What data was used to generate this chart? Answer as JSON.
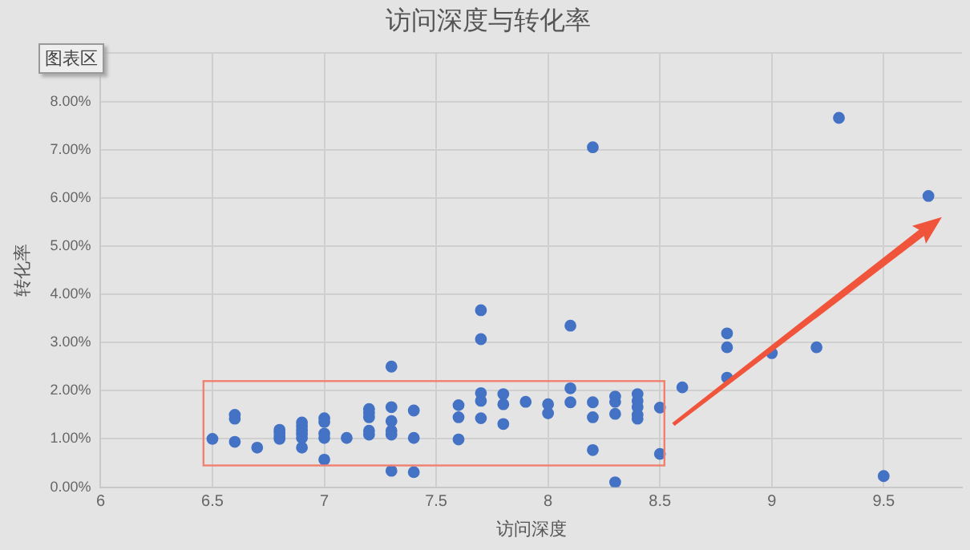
{
  "chart_data": {
    "type": "scatter",
    "title": "访问深度与转化率",
    "xlabel": "访问深度",
    "ylabel": "转化率",
    "annotations": [
      "图表区"
    ],
    "series": [
      {
        "color": "#4472c4",
        "x": [
          6.5,
          6.6,
          6.6,
          6.6,
          6.7,
          6.8,
          6.8,
          6.8,
          6.8,
          6.9,
          6.9,
          6.9,
          6.9,
          6.9,
          6.9,
          7.0,
          7.0,
          7.0,
          7.0,
          7.0,
          7.1,
          7.2,
          7.2,
          7.2,
          7.2,
          7.2,
          7.3,
          7.3,
          7.3,
          7.3,
          7.3,
          7.3,
          7.4,
          7.4,
          7.4,
          7.6,
          7.6,
          7.6,
          7.7,
          7.7,
          7.7,
          7.7,
          7.7,
          7.8,
          7.8,
          7.8,
          7.9,
          8.0,
          8.0,
          8.1,
          8.1,
          8.1,
          8.2,
          8.2,
          8.2,
          8.2,
          8.3,
          8.3,
          8.3,
          8.3,
          8.4,
          8.4,
          8.4,
          8.4,
          8.4,
          8.5,
          8.5,
          8.6,
          8.8,
          8.8,
          8.8,
          9.0,
          9.2,
          9.3,
          9.5,
          9.7
        ],
        "values": [
          1.0,
          1.5,
          1.42,
          0.94,
          0.82,
          1.19,
          1.13,
          1.06,
          1.0,
          1.34,
          1.26,
          1.18,
          1.1,
          1.02,
          0.82,
          1.43,
          1.35,
          1.11,
          1.02,
          0.57,
          1.02,
          1.62,
          1.54,
          1.45,
          1.17,
          1.09,
          2.5,
          1.66,
          1.37,
          1.17,
          1.09,
          0.34,
          1.59,
          1.02,
          0.31,
          1.7,
          1.45,
          0.99,
          3.67,
          3.07,
          1.95,
          1.79,
          1.43,
          1.93,
          1.72,
          1.31,
          1.77,
          1.72,
          1.53,
          3.35,
          2.05,
          1.76,
          7.05,
          1.76,
          1.45,
          0.77,
          1.88,
          1.77,
          1.52,
          0.1,
          1.93,
          1.79,
          1.66,
          1.5,
          1.42,
          1.65,
          0.69,
          2.07,
          3.19,
          2.9,
          2.27,
          2.78,
          2.9,
          7.66,
          0.23,
          6.04
        ]
      }
    ],
    "xlim": [
      6,
      9.85
    ],
    "xticks": [
      6,
      6.5,
      7,
      7.5,
      8,
      8.5,
      9,
      9.5
    ],
    "ylim": [
      0,
      9
    ],
    "yticks": [
      {
        "value": 0,
        "label": "0.00%"
      },
      {
        "value": 1,
        "label": "1.00%"
      },
      {
        "value": 2,
        "label": "2.00%"
      },
      {
        "value": 3,
        "label": "3.00%"
      },
      {
        "value": 4,
        "label": "4.00%"
      },
      {
        "value": 5,
        "label": "5.00%"
      },
      {
        "value": 6,
        "label": "6.00%"
      },
      {
        "value": 7,
        "label": "7.00%"
      },
      {
        "value": 8,
        "label": "8.00%"
      },
      {
        "value": 9,
        "label": null
      }
    ],
    "grid": true,
    "marker": "circle"
  }
}
